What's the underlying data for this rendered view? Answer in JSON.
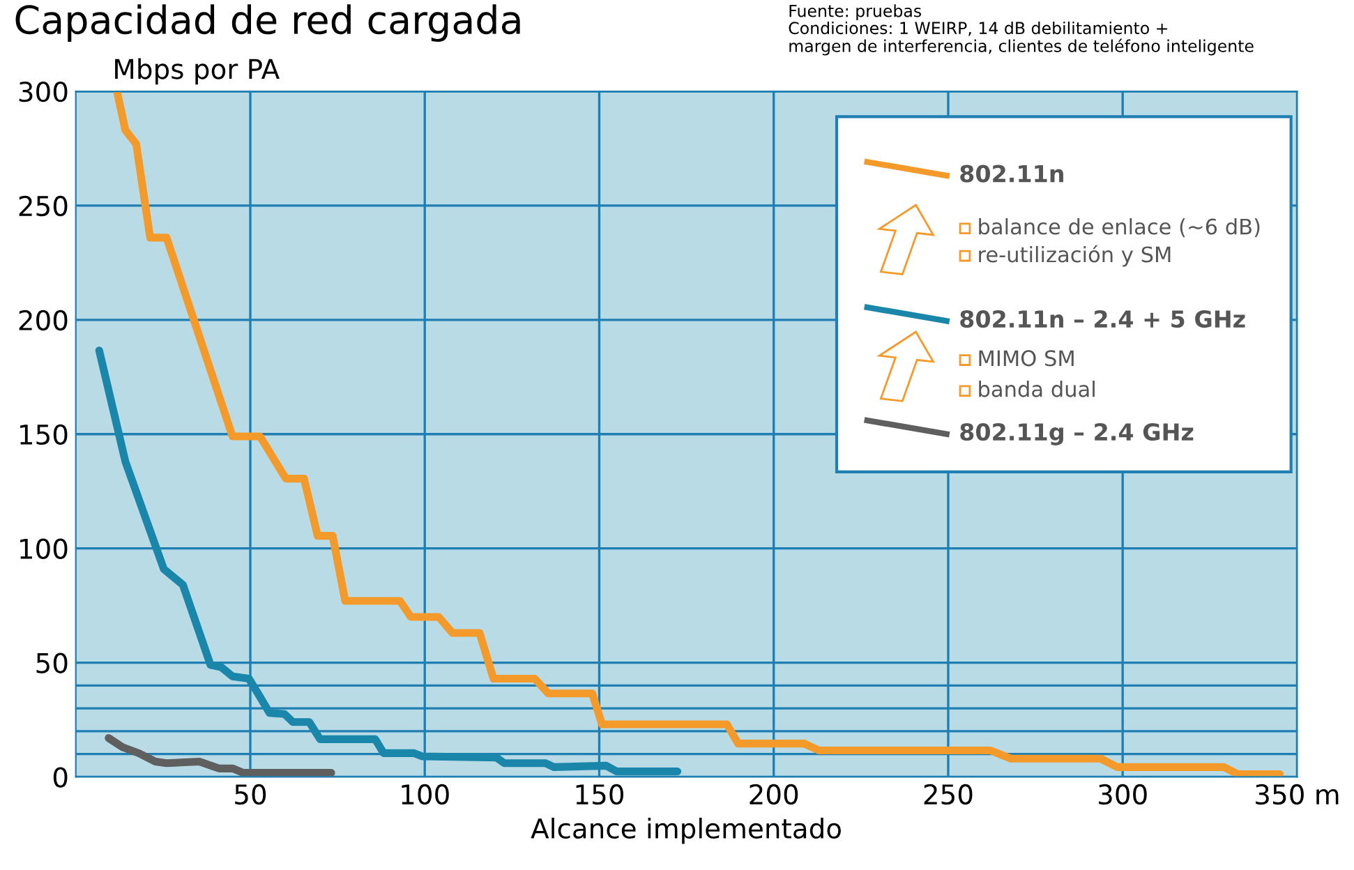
{
  "chart_data": {
    "type": "line",
    "title": "Capacidad de red cargada",
    "xlabel": "Alcance implementado",
    "ylabel": "Mbps por PA",
    "annotations": [
      "Fuente: pruebas\nCondiciones: 1 WEIRP, 14 dB debilitamiento +\nmargen de interferencia, clientes de teléfono inteligente",
      "balance de enlace (~6 dB)",
      "re-utilización y SM",
      "MIMO SM",
      "banda dual"
    ],
    "xlim": [
      0,
      350
    ],
    "ylim": [
      0,
      300
    ],
    "xticks": [
      50,
      100,
      150,
      200,
      250,
      300,
      {
        "value": 350,
        "label": "350 m"
      }
    ],
    "yticks": [
      0,
      {
        "value": 10,
        "label": null
      },
      {
        "value": 20,
        "label": null
      },
      {
        "value": 30,
        "label": null
      },
      {
        "value": 40,
        "label": null
      },
      50,
      100,
      150,
      200,
      250,
      300
    ],
    "grid": true,
    "legend": "top right",
    "marker": "none",
    "line_style": "solid",
    "series": [
      {
        "name": "802.11n",
        "color": "#f39a2b",
        "x": [
          11.8,
          14.2,
          17.3,
          21.3,
          26,
          44.9,
          52.8,
          60.2,
          65.4,
          69.3,
          73.6,
          77.2,
          92.9,
          96,
          104,
          107.9,
          115.7,
          119.7,
          131.5,
          135.4,
          148,
          150.8,
          186.6,
          189.8,
          208.7,
          213,
          262,
          268,
          293.7,
          298.4,
          329,
          333,
          345
        ],
        "values": [
          300,
          283,
          277,
          236,
          236,
          149,
          149,
          130.5,
          130.5,
          105.5,
          105.5,
          77,
          77,
          70,
          70,
          63,
          63,
          43,
          43,
          36.5,
          36.5,
          23,
          23,
          14.6,
          14.6,
          11.6,
          11.6,
          8,
          8,
          4.3,
          4.3,
          1.2,
          1.2
        ]
      },
      {
        "name": "802.11n – 2.4 + 5 GHz",
        "color": "#1a86aa",
        "x": [
          6.7,
          14.2,
          25.2,
          30.7,
          38.6,
          41.7,
          44.9,
          49.6,
          52.8,
          55.5,
          59.8,
          62.2,
          66.9,
          70,
          85.8,
          88.2,
          96.9,
          99.2,
          120.5,
          122.8,
          134.6,
          137,
          152,
          155,
          172.4
        ],
        "values": [
          186.6,
          138,
          91,
          84,
          49,
          48,
          44,
          43,
          35,
          28,
          27.5,
          24,
          24,
          16.5,
          16.5,
          10.4,
          10.4,
          9,
          8.5,
          6,
          6,
          4.3,
          4.9,
          2.4,
          2.4
        ]
      },
      {
        "name": "802.11g – 2.4 GHz",
        "color": "#5f5f5f",
        "x": [
          9.4,
          13.4,
          18,
          22.8,
          26,
          35.4,
          41,
          45,
          48,
          73.2
        ],
        "values": [
          17,
          13,
          10.4,
          6.7,
          6,
          6.7,
          3.7,
          3.7,
          1.8,
          1.8
        ]
      }
    ]
  }
}
